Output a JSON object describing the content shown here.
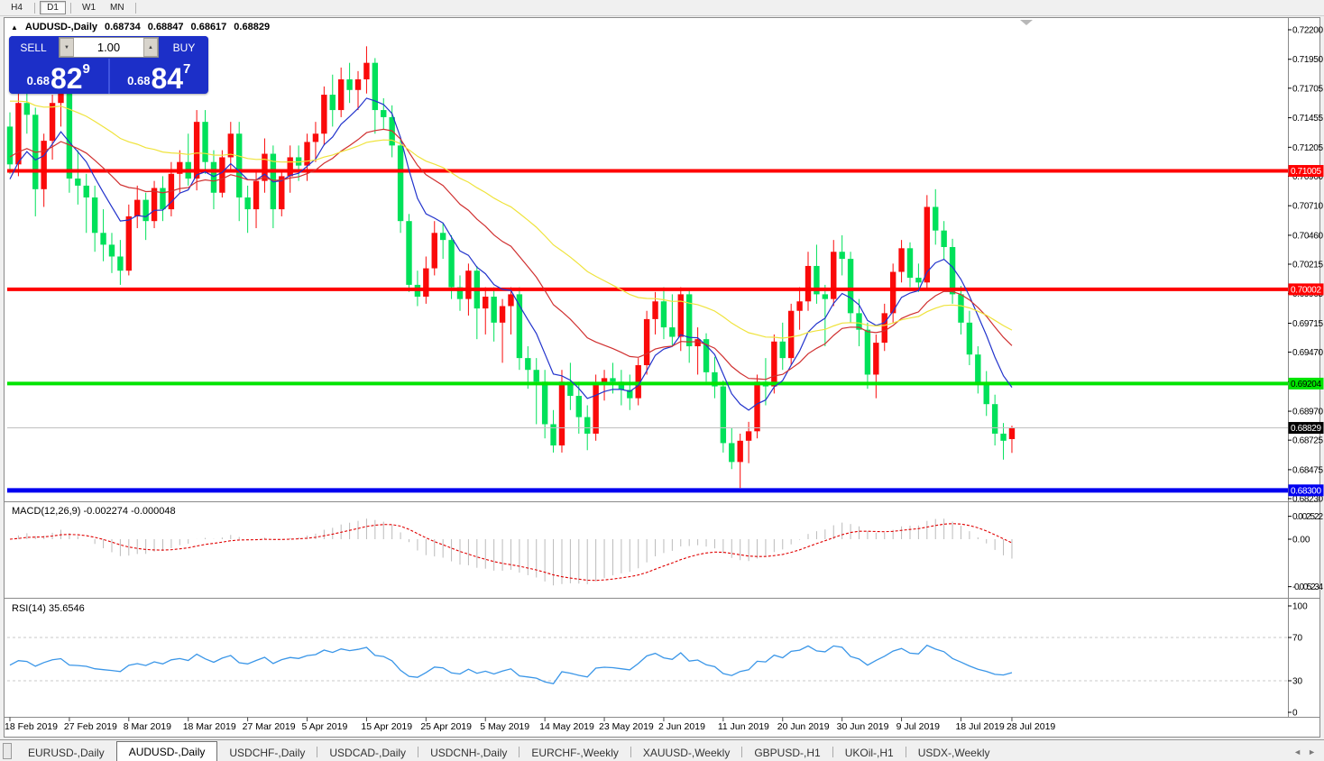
{
  "toolbar": {
    "timeframes": [
      {
        "label": "H4",
        "active": false
      },
      {
        "label": "D1",
        "active": true
      },
      {
        "label": "W1",
        "active": false
      },
      {
        "label": "MN",
        "active": false
      }
    ]
  },
  "chart": {
    "symbol_header": {
      "collapse_icon": "▲",
      "symbol": "AUDUSD-,Daily",
      "open": "0.68734",
      "high": "0.68847",
      "low": "0.68617",
      "close": "0.68829"
    },
    "trade_panel": {
      "sell_label": "SELL",
      "buy_label": "BUY",
      "volume": "1.00",
      "spinner_down_icon": "▼",
      "spinner_up_icon": "▲",
      "sell_price": {
        "prefix": "0.68",
        "big": "82",
        "sup": "9"
      },
      "buy_price": {
        "prefix": "0.68",
        "big": "84",
        "sup": "7"
      }
    },
    "macd_label": "MACD(12,26,9) -0.002274 -0.000048",
    "rsi_label": "RSI(14) 35.6546",
    "autoscroll_icon": "triangle-down"
  },
  "price_axis": {
    "labels": [
      {
        "text": "0.72200",
        "price": 0.722
      },
      {
        "text": "0.71950",
        "price": 0.7195
      },
      {
        "text": "0.71705",
        "price": 0.71705
      },
      {
        "text": "0.71455",
        "price": 0.71455
      },
      {
        "text": "0.71205",
        "price": 0.71205
      },
      {
        "text": "0.70960",
        "price": 0.7096
      },
      {
        "text": "0.70710",
        "price": 0.7071
      },
      {
        "text": "0.70460",
        "price": 0.7046
      },
      {
        "text": "0.70215",
        "price": 0.70215
      },
      {
        "text": "0.69965",
        "price": 0.69965
      },
      {
        "text": "0.69715",
        "price": 0.69715
      },
      {
        "text": "0.69470",
        "price": 0.6947
      },
      {
        "text": "0.69220",
        "price": 0.6922
      },
      {
        "text": "0.68970",
        "price": 0.6897
      },
      {
        "text": "0.68725",
        "price": 0.68725
      },
      {
        "text": "0.68475",
        "price": 0.68475
      },
      {
        "text": "0.68230",
        "price": 0.6823
      }
    ],
    "tags": [
      {
        "text": "0.71005",
        "price": 0.71005,
        "bg": "#FF0000",
        "fg": "#FFFFFF"
      },
      {
        "text": "0.70002",
        "price": 0.70002,
        "bg": "#FF0000",
        "fg": "#FFFFFF"
      },
      {
        "text": "0.69204",
        "price": 0.69204,
        "bg": "#00E400",
        "fg": "#000000"
      },
      {
        "text": "0.68829",
        "price": 0.68829,
        "bg": "#000000",
        "fg": "#FFFFFF"
      },
      {
        "text": "0.68300",
        "price": 0.683,
        "bg": "#0000F0",
        "fg": "#FFFFFF"
      }
    ]
  },
  "macd_axis": [
    {
      "text": "0.002522",
      "value": 0.002522
    },
    {
      "text": "0.00",
      "value": 0.0
    },
    {
      "text": "-0.005234",
      "value": -0.005234
    }
  ],
  "rsi_axis": [
    {
      "text": "100",
      "value": 100
    },
    {
      "text": "70",
      "value": 70
    },
    {
      "text": "30",
      "value": 30
    },
    {
      "text": "0",
      "value": 0
    }
  ],
  "chart_data": {
    "type": "candlestick",
    "symbol": "AUDUSD-,Daily",
    "note": "red = bullish, green = bearish (as rendered in screenshot)",
    "price_range": {
      "top": 0.722,
      "bottom": 0.6823
    },
    "date_ticks": [
      "18 Feb 2019",
      "27 Feb 2019",
      "8 Mar 2019",
      "18 Mar 2019",
      "27 Mar 2019",
      "5 Apr 2019",
      "15 Apr 2019",
      "25 Apr 2019",
      "5 May 2019",
      "14 May 2019",
      "23 May 2019",
      "2 Jun 2019",
      "11 Jun 2019",
      "20 Jun 2019",
      "30 Jun 2019",
      "9 Jul 2019",
      "18 Jul 2019",
      "28 Jul 2019"
    ],
    "candles": [
      [
        0.7138,
        0.715,
        0.7098,
        0.7106
      ],
      [
        0.7106,
        0.7168,
        0.7096,
        0.7158
      ],
      [
        0.7158,
        0.7175,
        0.7132,
        0.7148
      ],
      [
        0.7148,
        0.7154,
        0.7062,
        0.7085
      ],
      [
        0.7085,
        0.7132,
        0.707,
        0.7126
      ],
      [
        0.7126,
        0.7165,
        0.711,
        0.7158
      ],
      [
        0.7158,
        0.7178,
        0.7138,
        0.717
      ],
      [
        0.717,
        0.7174,
        0.7082,
        0.7094
      ],
      [
        0.7094,
        0.7118,
        0.7072,
        0.7088
      ],
      [
        0.7088,
        0.7098,
        0.7048,
        0.7078
      ],
      [
        0.7078,
        0.7088,
        0.7032,
        0.7048
      ],
      [
        0.7048,
        0.7068,
        0.7024,
        0.7038
      ],
      [
        0.7038,
        0.7048,
        0.7014,
        0.7028
      ],
      [
        0.7028,
        0.7042,
        0.7004,
        0.7016
      ],
      [
        0.7016,
        0.7072,
        0.7012,
        0.7062
      ],
      [
        0.7062,
        0.7088,
        0.7052,
        0.7076
      ],
      [
        0.7076,
        0.7082,
        0.7042,
        0.7058
      ],
      [
        0.7058,
        0.7092,
        0.7052,
        0.7086
      ],
      [
        0.7086,
        0.7096,
        0.7058,
        0.7068
      ],
      [
        0.7068,
        0.7108,
        0.7062,
        0.7098
      ],
      [
        0.7098,
        0.7118,
        0.7082,
        0.7108
      ],
      [
        0.7108,
        0.7132,
        0.7088,
        0.7094
      ],
      [
        0.7094,
        0.7152,
        0.7084,
        0.7142
      ],
      [
        0.7142,
        0.7152,
        0.7098,
        0.7108
      ],
      [
        0.7108,
        0.7118,
        0.7068,
        0.7082
      ],
      [
        0.7082,
        0.7118,
        0.7078,
        0.7112
      ],
      [
        0.7112,
        0.7142,
        0.7102,
        0.7132
      ],
      [
        0.7132,
        0.7142,
        0.7058,
        0.7078
      ],
      [
        0.7078,
        0.7088,
        0.7048,
        0.7068
      ],
      [
        0.7068,
        0.7102,
        0.7052,
        0.7092
      ],
      [
        0.7092,
        0.7128,
        0.7082,
        0.7115
      ],
      [
        0.7115,
        0.7122,
        0.7052,
        0.7068
      ],
      [
        0.7068,
        0.7102,
        0.7062,
        0.7096
      ],
      [
        0.7096,
        0.7122,
        0.7082,
        0.7112
      ],
      [
        0.7112,
        0.7122,
        0.7092,
        0.7105
      ],
      [
        0.7105,
        0.7132,
        0.7092,
        0.7125
      ],
      [
        0.7125,
        0.7142,
        0.7108,
        0.7132
      ],
      [
        0.7132,
        0.7172,
        0.7122,
        0.7165
      ],
      [
        0.7165,
        0.7182,
        0.7138,
        0.7152
      ],
      [
        0.7152,
        0.7188,
        0.7146,
        0.7178
      ],
      [
        0.7178,
        0.7192,
        0.7158,
        0.7169
      ],
      [
        0.7169,
        0.7185,
        0.7152,
        0.7178
      ],
      [
        0.7178,
        0.7206,
        0.7166,
        0.7192
      ],
      [
        0.7192,
        0.7196,
        0.7132,
        0.7152
      ],
      [
        0.7152,
        0.7162,
        0.7136,
        0.7146
      ],
      [
        0.7146,
        0.7156,
        0.7112,
        0.7122
      ],
      [
        0.7122,
        0.7128,
        0.7048,
        0.7058
      ],
      [
        0.7058,
        0.7064,
        0.6998,
        0.7004
      ],
      [
        0.7004,
        0.7016,
        0.6986,
        0.6994
      ],
      [
        0.6994,
        0.7028,
        0.6988,
        0.7018
      ],
      [
        0.7018,
        0.7058,
        0.7012,
        0.7048
      ],
      [
        0.7048,
        0.7056,
        0.7026,
        0.7042
      ],
      [
        0.7042,
        0.7046,
        0.6992,
        0.7002
      ],
      [
        0.7002,
        0.7012,
        0.6982,
        0.6992
      ],
      [
        0.6992,
        0.7022,
        0.6978,
        0.7016
      ],
      [
        0.7016,
        0.702,
        0.6958,
        0.6984
      ],
      [
        0.6984,
        0.7002,
        0.6962,
        0.6994
      ],
      [
        0.6994,
        0.7002,
        0.6956,
        0.6972
      ],
      [
        0.6972,
        0.6992,
        0.6938,
        0.6986
      ],
      [
        0.6986,
        0.7002,
        0.6962,
        0.6996
      ],
      [
        0.6996,
        0.7002,
        0.6932,
        0.6942
      ],
      [
        0.6942,
        0.6952,
        0.6916,
        0.6932
      ],
      [
        0.6932,
        0.6942,
        0.6886,
        0.6922
      ],
      [
        0.6922,
        0.6932,
        0.6874,
        0.6886
      ],
      [
        0.6886,
        0.6898,
        0.6862,
        0.6868
      ],
      [
        0.6868,
        0.6932,
        0.6862,
        0.6922
      ],
      [
        0.6922,
        0.6938,
        0.6898,
        0.691
      ],
      [
        0.691,
        0.6922,
        0.6878,
        0.6892
      ],
      [
        0.6892,
        0.6902,
        0.6864,
        0.6878
      ],
      [
        0.6878,
        0.6928,
        0.6872,
        0.692
      ],
      [
        0.692,
        0.6932,
        0.6906,
        0.6925
      ],
      [
        0.6925,
        0.6938,
        0.6912,
        0.6922
      ],
      [
        0.6922,
        0.6932,
        0.6902,
        0.6915
      ],
      [
        0.6915,
        0.6928,
        0.6898,
        0.6908
      ],
      [
        0.6908,
        0.6942,
        0.6902,
        0.6936
      ],
      [
        0.6936,
        0.6982,
        0.6928,
        0.6975
      ],
      [
        0.6975,
        0.6998,
        0.6962,
        0.699
      ],
      [
        0.699,
        0.7002,
        0.6958,
        0.6968
      ],
      [
        0.6968,
        0.6996,
        0.6952,
        0.696
      ],
      [
        0.696,
        0.7002,
        0.6948,
        0.6996
      ],
      [
        0.6996,
        0.6999,
        0.6938,
        0.6952
      ],
      [
        0.6952,
        0.6968,
        0.6928,
        0.6958
      ],
      [
        0.6958,
        0.6963,
        0.6922,
        0.693
      ],
      [
        0.693,
        0.6943,
        0.6908,
        0.6918
      ],
      [
        0.6918,
        0.6923,
        0.6862,
        0.687
      ],
      [
        0.687,
        0.6883,
        0.6848,
        0.6854
      ],
      [
        0.6854,
        0.6878,
        0.6832,
        0.6872
      ],
      [
        0.6872,
        0.6888,
        0.6853,
        0.688
      ],
      [
        0.688,
        0.6928,
        0.6874,
        0.6922
      ],
      [
        0.6922,
        0.6942,
        0.6902,
        0.6918
      ],
      [
        0.6918,
        0.6962,
        0.6912,
        0.6956
      ],
      [
        0.6956,
        0.6972,
        0.6932,
        0.6942
      ],
      [
        0.6942,
        0.6988,
        0.6936,
        0.6982
      ],
      [
        0.6982,
        0.7002,
        0.6966,
        0.699
      ],
      [
        0.699,
        0.7032,
        0.6982,
        0.702
      ],
      [
        0.702,
        0.7038,
        0.6988,
        0.6996
      ],
      [
        0.6996,
        0.7004,
        0.6952,
        0.6992
      ],
      [
        0.6992,
        0.7042,
        0.6986,
        0.7032
      ],
      [
        0.7032,
        0.7046,
        0.7012,
        0.7026
      ],
      [
        0.7026,
        0.7032,
        0.6972,
        0.698
      ],
      [
        0.698,
        0.6992,
        0.6952,
        0.6966
      ],
      [
        0.6966,
        0.6972,
        0.6916,
        0.6928
      ],
      [
        0.6928,
        0.6962,
        0.6908,
        0.6955
      ],
      [
        0.6955,
        0.6988,
        0.6948,
        0.698
      ],
      [
        0.698,
        0.7022,
        0.6972,
        0.7015
      ],
      [
        0.7015,
        0.7042,
        0.7006,
        0.7035
      ],
      [
        0.7035,
        0.704,
        0.7002,
        0.701
      ],
      [
        0.701,
        0.7022,
        0.6998,
        0.7006
      ],
      [
        0.7006,
        0.708,
        0.7,
        0.707
      ],
      [
        0.707,
        0.7085,
        0.7038,
        0.705
      ],
      [
        0.705,
        0.7058,
        0.7026,
        0.7036
      ],
      [
        0.7036,
        0.7043,
        0.6988,
        0.6996
      ],
      [
        0.6996,
        0.7003,
        0.6962,
        0.6972
      ],
      [
        0.6972,
        0.6982,
        0.6936,
        0.6945
      ],
      [
        0.6945,
        0.6952,
        0.6912,
        0.692
      ],
      [
        0.692,
        0.6931,
        0.6893,
        0.6903
      ],
      [
        0.6903,
        0.6911,
        0.6868,
        0.6878
      ],
      [
        0.6878,
        0.6887,
        0.6856,
        0.6872
      ],
      [
        0.68734,
        0.68847,
        0.68617,
        0.68829
      ]
    ],
    "hlines": [
      {
        "price": 0.71005,
        "color": "#FF0000",
        "width": 4
      },
      {
        "price": 0.70002,
        "color": "#FF0000",
        "width": 4
      },
      {
        "price": 0.69204,
        "color": "#00E400",
        "width": 4
      },
      {
        "price": 0.683,
        "color": "#0000F0",
        "width": 5
      }
    ],
    "current_price": 0.68829,
    "ma_lines": [
      {
        "name": "ma-fast-blue",
        "period": 8,
        "color": "#2233CC",
        "seed": 0.709
      },
      {
        "name": "ma-mid-red",
        "period": 21,
        "color": "#D03030",
        "seed": 0.7113
      },
      {
        "name": "ma-slow-yellow",
        "period": 45,
        "color": "#EFE33C",
        "seed": 0.7162
      }
    ],
    "indicators": {
      "macd": {
        "params": [
          12,
          26,
          9
        ],
        "value": -0.002274,
        "signal": -4.8e-05,
        "axis_range": [
          0.002522,
          -0.005234
        ]
      },
      "rsi": {
        "period": 14,
        "value": 35.6546,
        "levels": [
          70,
          30
        ],
        "axis_range": [
          0,
          100
        ]
      }
    }
  },
  "colors": {
    "bull": "#FA0A0A",
    "bear": "#00E15A",
    "macd_hist": "#BBBBBB",
    "macd_signal": "#E00000",
    "rsi_line": "#3A96E8",
    "current_line": "#C0C0C0",
    "rsi_levels": "#C8C8C8"
  },
  "tabbar": {
    "tabs": [
      {
        "label": "EURUSD-,Daily",
        "active": false
      },
      {
        "label": "AUDUSD-,Daily",
        "active": true
      },
      {
        "label": "USDCHF-,Daily",
        "active": false
      },
      {
        "label": "USDCAD-,Daily",
        "active": false
      },
      {
        "label": "USDCNH-,Daily",
        "active": false
      },
      {
        "label": "EURCHF-,Weekly",
        "active": false
      },
      {
        "label": "XAUUSD-,Weekly",
        "active": false
      },
      {
        "label": "GBPUSD-,H1",
        "active": false
      },
      {
        "label": "UKOil-,H1",
        "active": false
      },
      {
        "label": "USDX-,Weekly",
        "active": false
      }
    ],
    "scroll_left_icon": "◄",
    "scroll_right_icon": "►"
  }
}
